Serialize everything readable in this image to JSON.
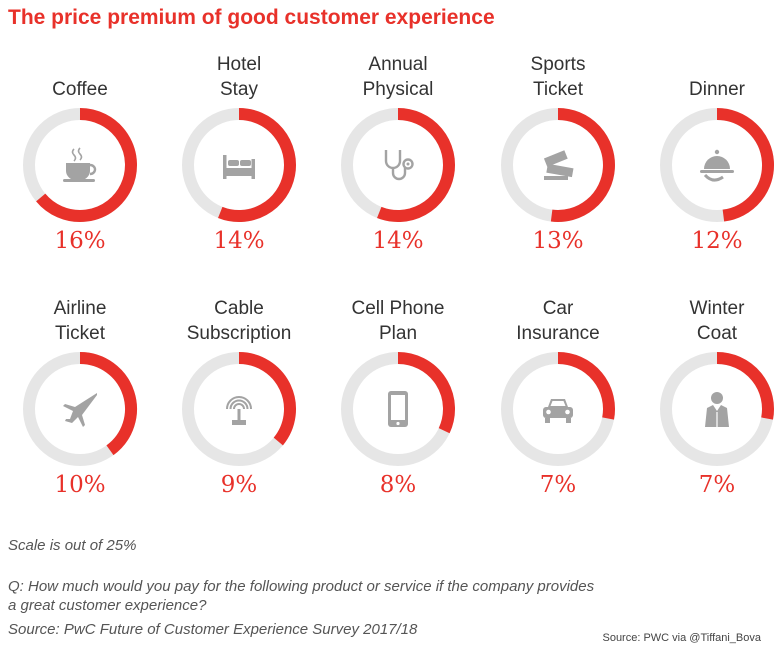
{
  "chart_data": {
    "type": "pie",
    "title": "The price premium of good customer experience",
    "scale_max": 25,
    "unit": "%",
    "items": [
      {
        "label_lines": [
          "Coffee"
        ],
        "value": 16,
        "value_text": "16%",
        "icon": "coffee-cup-icon"
      },
      {
        "label_lines": [
          "Hotel",
          "Stay"
        ],
        "value": 14,
        "value_text": "14%",
        "icon": "bed-icon"
      },
      {
        "label_lines": [
          "Annual",
          "Physical"
        ],
        "value": 14,
        "value_text": "14%",
        "icon": "stethoscope-icon"
      },
      {
        "label_lines": [
          "Sports",
          "Ticket"
        ],
        "value": 13,
        "value_text": "13%",
        "icon": "ticket-icon"
      },
      {
        "label_lines": [
          "Dinner"
        ],
        "value": 12,
        "value_text": "12%",
        "icon": "serving-cloche-icon"
      },
      {
        "label_lines": [
          "Airline",
          "Ticket"
        ],
        "value": 10,
        "value_text": "10%",
        "icon": "airplane-icon"
      },
      {
        "label_lines": [
          "Cable",
          "Subscription"
        ],
        "value": 9,
        "value_text": "9%",
        "icon": "antenna-signal-icon"
      },
      {
        "label_lines": [
          "Cell Phone",
          "Plan"
        ],
        "value": 8,
        "value_text": "8%",
        "icon": "mobile-phone-icon"
      },
      {
        "label_lines": [
          "Car",
          "Insurance"
        ],
        "value": 7,
        "value_text": "7%",
        "icon": "car-icon"
      },
      {
        "label_lines": [
          "Winter",
          "Coat"
        ],
        "value": 7,
        "value_text": "7%",
        "icon": "person-coat-icon"
      }
    ]
  },
  "notes": {
    "scale": "Scale is out of 25%",
    "question_line1": "Q: How much would you pay for the following product or service if the company provides",
    "question_line2": "a great customer experience?",
    "source": "Source: PwC Future of Customer Experience Survey 2017/18"
  },
  "credit": "Source: PWC via @Tiffani_Bova",
  "colors": {
    "accent": "#e8312a",
    "track": "#e6e6e6",
    "icon": "#a3a3a3",
    "text": "#333333"
  }
}
